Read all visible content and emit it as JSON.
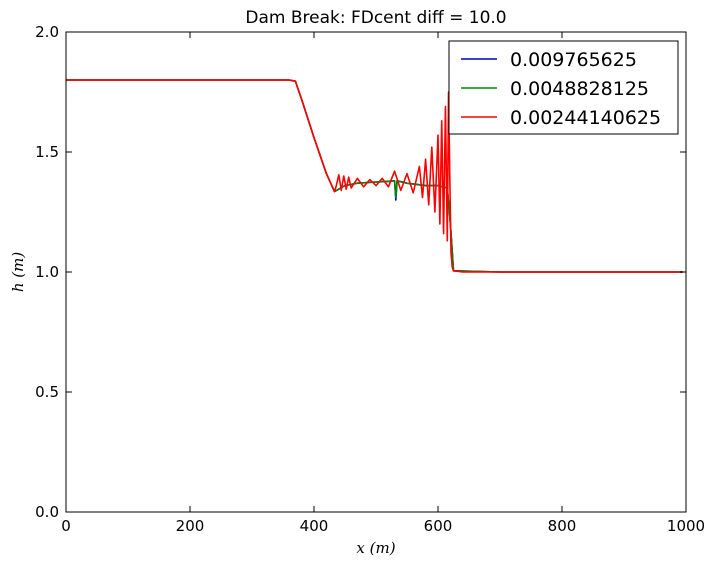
{
  "chart_data": {
    "type": "line",
    "title": "Dam Break: FDcent diff = 10.0",
    "xlabel": "x (m)",
    "ylabel": "h (m)",
    "xlim": [
      0,
      1000
    ],
    "ylim": [
      0.0,
      2.0
    ],
    "xticks": [
      0,
      200,
      400,
      600,
      800,
      1000
    ],
    "xtick_labels": [
      "0",
      "200",
      "400",
      "600",
      "800",
      "1000"
    ],
    "yticks": [
      0.0,
      0.5,
      1.0,
      1.5,
      2.0
    ],
    "ytick_labels": [
      "0.0",
      "0.5",
      "1.0",
      "1.5",
      "2.0"
    ],
    "grid": false,
    "legend_position": "top-right",
    "series": [
      {
        "name": "0.009765625",
        "color": "#0000cc",
        "x": [
          0,
          360,
          370,
          380,
          400,
          420,
          433,
          450,
          470,
          500,
          520,
          530,
          532,
          534,
          550,
          580,
          600,
          615,
          620,
          625,
          700,
          800,
          900,
          995
        ],
        "y": [
          1.8,
          1.8,
          1.795,
          1.72,
          1.56,
          1.41,
          1.335,
          1.36,
          1.37,
          1.375,
          1.378,
          1.38,
          1.3,
          1.38,
          1.37,
          1.36,
          1.36,
          1.35,
          1.2,
          1.005,
          1.0,
          1.0,
          1.0,
          1.0
        ]
      },
      {
        "name": "0.0048828125",
        "color": "#008800",
        "x": [
          0,
          360,
          370,
          380,
          400,
          420,
          433,
          450,
          470,
          500,
          520,
          530,
          532,
          534,
          550,
          580,
          600,
          615,
          620,
          625,
          700,
          800,
          900,
          995
        ],
        "y": [
          1.8,
          1.8,
          1.795,
          1.72,
          1.56,
          1.41,
          1.335,
          1.36,
          1.37,
          1.375,
          1.378,
          1.38,
          1.31,
          1.38,
          1.37,
          1.36,
          1.36,
          1.35,
          1.2,
          1.005,
          1.0,
          1.0,
          1.0,
          1.0
        ]
      },
      {
        "name": "0.00244140625",
        "color": "#ff0000",
        "x": [
          0,
          360,
          370,
          380,
          400,
          420,
          433,
          436,
          440,
          444,
          448,
          452,
          456,
          460,
          470,
          480,
          490,
          500,
          510,
          520,
          530,
          540,
          550,
          560,
          570,
          575,
          580,
          585,
          590,
          595,
          600,
          603,
          606,
          609,
          612,
          615,
          617,
          619,
          621,
          623,
          625,
          640,
          700,
          800,
          900,
          995
        ],
        "y": [
          1.8,
          1.8,
          1.795,
          1.72,
          1.56,
          1.41,
          1.335,
          1.36,
          1.405,
          1.34,
          1.4,
          1.345,
          1.395,
          1.35,
          1.39,
          1.355,
          1.385,
          1.36,
          1.39,
          1.355,
          1.42,
          1.34,
          1.41,
          1.33,
          1.44,
          1.31,
          1.47,
          1.28,
          1.52,
          1.25,
          1.57,
          1.2,
          1.63,
          1.16,
          1.69,
          1.13,
          1.75,
          1.4,
          1.08,
          1.02,
          1.005,
          1.0,
          1.0,
          1.0,
          1.0,
          1.0
        ]
      }
    ]
  }
}
